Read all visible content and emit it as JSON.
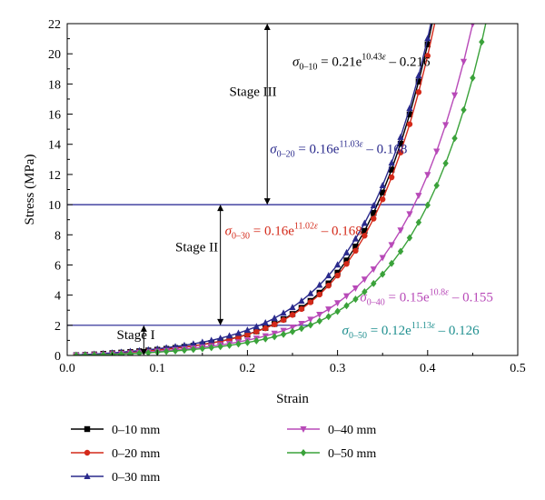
{
  "chart_data": {
    "type": "line",
    "xlabel": "Strain",
    "ylabel": "Stress (MPa)",
    "xlim": [
      0.0,
      0.5
    ],
    "ylim": [
      0,
      22
    ],
    "xticks": [
      "0.0",
      "0.1",
      "0.2",
      "0.3",
      "0.4",
      "0.5"
    ],
    "yticks": [
      "0",
      "2",
      "4",
      "6",
      "8",
      "10",
      "12",
      "14",
      "16",
      "18",
      "20",
      "22"
    ],
    "grid": false,
    "legend_position": "bottom",
    "x": [
      0.01,
      0.02,
      0.03,
      0.04,
      0.05,
      0.06,
      0.07,
      0.08,
      0.09,
      0.1,
      0.11,
      0.12,
      0.13,
      0.14,
      0.15,
      0.16,
      0.17,
      0.18,
      0.19,
      0.2,
      0.21,
      0.22,
      0.23,
      0.24,
      0.25,
      0.26,
      0.27,
      0.28,
      0.29,
      0.3,
      0.31,
      0.32,
      0.33,
      0.34,
      0.35,
      0.36,
      0.37,
      0.38,
      0.39,
      0.4,
      0.41,
      0.42,
      0.43,
      0.44,
      0.45,
      0.46,
      0.47
    ],
    "series": [
      {
        "name": "0–10 mm",
        "color": "#000000",
        "marker": "square",
        "values": [
          0.02,
          0.04,
          0.07,
          0.11,
          0.15,
          0.19,
          0.23,
          0.28,
          0.33,
          0.38,
          0.44,
          0.5,
          0.57,
          0.64,
          0.73,
          0.83,
          0.94,
          1.08,
          1.23,
          1.4,
          1.6,
          1.83,
          2.09,
          2.4,
          2.75,
          3.16,
          3.62,
          4.16,
          4.78,
          5.49,
          6.3,
          7.22,
          8.26,
          9.45,
          10.8,
          12.32,
          14.04,
          15.98,
          18.16,
          20.62,
          23.39,
          null,
          null,
          null,
          null,
          null,
          null
        ]
      },
      {
        "name": "0–20 mm",
        "color": "#d42a1a",
        "marker": "circle",
        "values": [
          0.02,
          0.04,
          0.07,
          0.1,
          0.14,
          0.18,
          0.22,
          0.26,
          0.31,
          0.36,
          0.42,
          0.48,
          0.55,
          0.63,
          0.72,
          0.82,
          0.93,
          1.06,
          1.21,
          1.38,
          1.58,
          1.8,
          2.06,
          2.35,
          2.69,
          3.08,
          3.53,
          4.04,
          4.63,
          5.3,
          6.07,
          6.94,
          7.94,
          9.07,
          10.35,
          11.81,
          13.46,
          15.33,
          17.46,
          19.87,
          22.6,
          null,
          null,
          null,
          null,
          null,
          null
        ]
      },
      {
        "name": "0–30 mm",
        "color": "#2a2a8c",
        "marker": "triangle-up",
        "values": [
          0.03,
          0.06,
          0.09,
          0.13,
          0.17,
          0.22,
          0.27,
          0.32,
          0.38,
          0.44,
          0.51,
          0.59,
          0.67,
          0.77,
          0.88,
          1.0,
          1.14,
          1.3,
          1.48,
          1.68,
          1.91,
          2.17,
          2.47,
          2.81,
          3.19,
          3.62,
          4.11,
          4.67,
          5.3,
          6.01,
          6.82,
          7.74,
          8.77,
          9.94,
          11.27,
          12.77,
          14.47,
          16.39,
          18.56,
          21.02,
          23.8,
          null,
          null,
          null,
          null,
          null,
          null
        ]
      },
      {
        "name": "0–40 mm",
        "color": "#b84ab8",
        "marker": "triangle-down",
        "values": [
          0.01,
          0.02,
          0.04,
          0.06,
          0.09,
          0.12,
          0.15,
          0.19,
          0.23,
          0.27,
          0.32,
          0.37,
          0.42,
          0.48,
          0.55,
          0.62,
          0.7,
          0.79,
          0.89,
          1.01,
          1.14,
          1.29,
          1.46,
          1.65,
          1.87,
          2.11,
          2.39,
          2.71,
          3.07,
          3.48,
          3.94,
          4.46,
          5.05,
          5.72,
          6.48,
          7.33,
          8.3,
          9.38,
          10.6,
          11.98,
          13.53,
          15.29,
          17.26,
          19.48,
          21.98,
          null,
          null
        ]
      },
      {
        "name": "0–50 mm",
        "color": "#3aa23a",
        "marker": "diamond",
        "values": [
          0.01,
          0.02,
          0.03,
          0.05,
          0.07,
          0.09,
          0.12,
          0.15,
          0.18,
          0.22,
          0.26,
          0.3,
          0.35,
          0.4,
          0.46,
          0.52,
          0.59,
          0.67,
          0.76,
          0.86,
          0.97,
          1.1,
          1.24,
          1.4,
          1.58,
          1.79,
          2.02,
          2.28,
          2.58,
          2.92,
          3.3,
          3.73,
          4.22,
          4.77,
          5.39,
          6.1,
          6.9,
          7.8,
          8.82,
          9.97,
          11.27,
          12.74,
          14.4,
          16.28,
          18.4,
          20.79,
          23.49
        ]
      }
    ],
    "hlines": [
      {
        "y": 2,
        "x_end": 0.27,
        "color": "#1f1f8f"
      },
      {
        "y": 10,
        "x_end": 0.4,
        "color": "#1f1f8f"
      }
    ],
    "stages": [
      {
        "label": "Stage I",
        "arrow_x": 0.085,
        "y_from": 0,
        "y_to": 2,
        "text_x": 0.055,
        "text_y": 1.1
      },
      {
        "label": "Stage II",
        "arrow_x": 0.17,
        "y_from": 2,
        "y_to": 10,
        "text_x": 0.12,
        "text_y": 6.9
      },
      {
        "label": "Stage III",
        "arrow_x": 0.222,
        "y_from": 10,
        "y_to": 22,
        "text_x": 0.18,
        "text_y": 17.2
      }
    ],
    "annotations": [
      {
        "sub": "0–10",
        "coef": "0.21",
        "exp": "10.43",
        "offset": "0.216",
        "color": "#000000",
        "x": 0.25,
        "y": 19.2
      },
      {
        "sub": "0–20",
        "coef": "0.16",
        "exp": "11.03",
        "offset": "0.168",
        "color": "#2a2a8c",
        "x": 0.225,
        "y": 13.4
      },
      {
        "sub": "0–30",
        "coef": "0.16",
        "exp": "11.02",
        "offset": "0.168",
        "color": "#d42a1a",
        "x": 0.175,
        "y": 8.0
      },
      {
        "sub": "0–40",
        "coef": "0.15",
        "exp": "10.8",
        "offset": "0.155",
        "color": "#b84ab8",
        "x": 0.325,
        "y": 3.6
      },
      {
        "sub": "0–50",
        "coef": "0.12",
        "exp": "11.13",
        "offset": "0.126",
        "color": "#1f8f8f",
        "x": 0.305,
        "y": 1.4
      }
    ]
  }
}
